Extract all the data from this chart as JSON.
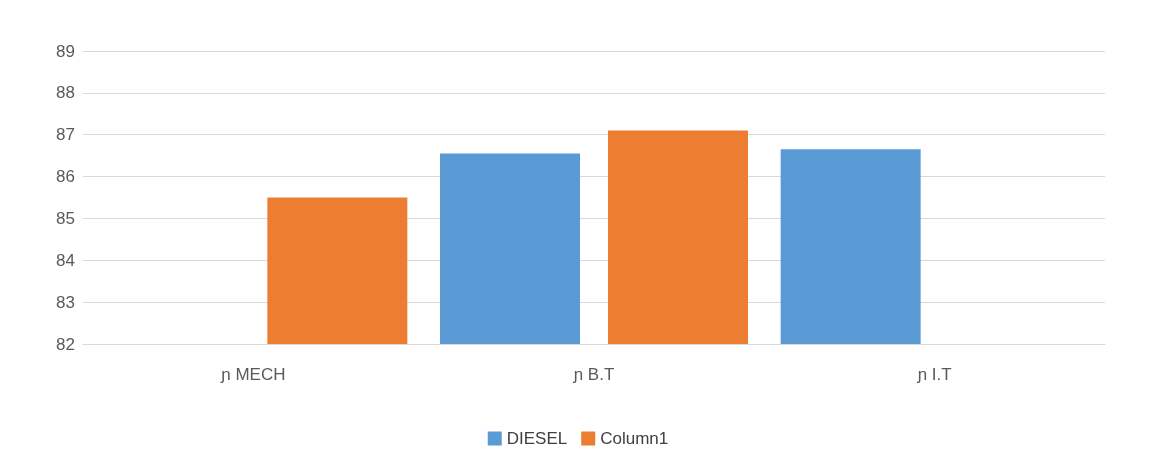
{
  "chart_data": {
    "type": "bar",
    "categories": [
      "ɲ MECH",
      "ɲ B.T",
      "ɲ I.T"
    ],
    "series": [
      {
        "name": "DIESEL",
        "color": "#5b9bd5",
        "values": [
          null,
          86.55,
          86.65
        ]
      },
      {
        "name": "Column1",
        "color": "#ed7d31",
        "values": [
          85.5,
          87.1,
          null
        ]
      }
    ],
    "ylim": [
      82,
      89
    ],
    "yticks": [
      82,
      83,
      84,
      85,
      86,
      87,
      88,
      89
    ],
    "grid": "y",
    "legend": "bottom"
  }
}
